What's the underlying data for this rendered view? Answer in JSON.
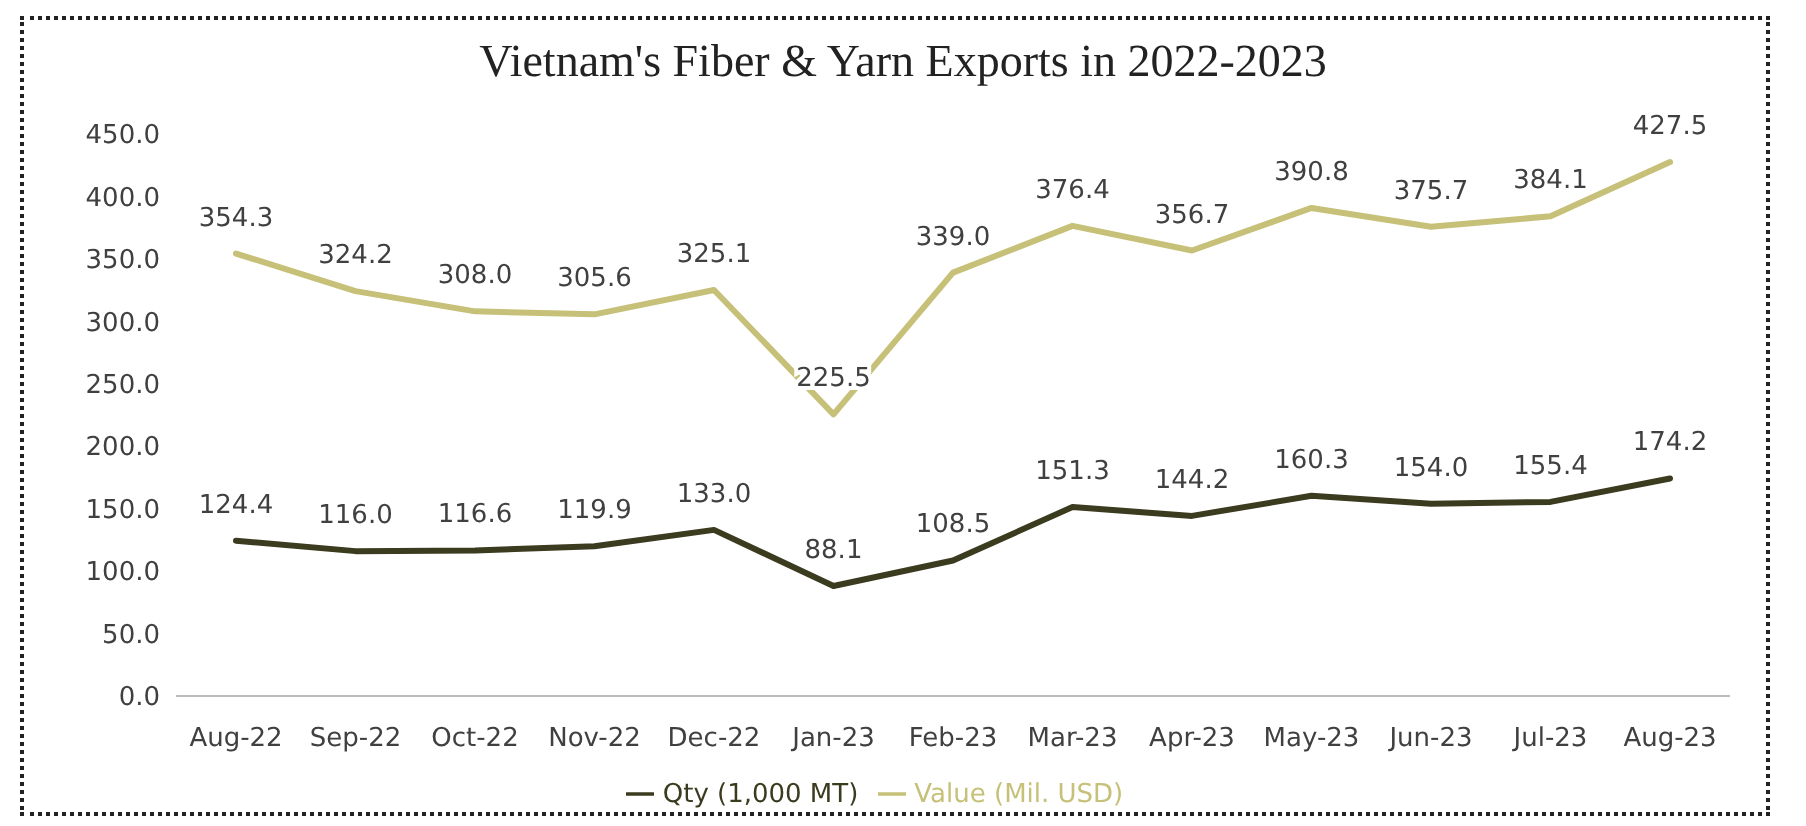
{
  "chart_data": {
    "type": "line",
    "title": "Vietnam's Fiber & Yarn Exports in 2022-2023",
    "categories": [
      "Aug-22",
      "Sep-22",
      "Oct-22",
      "Nov-22",
      "Dec-22",
      "Jan-23",
      "Feb-23",
      "Mar-23",
      "Apr-23",
      "May-23",
      "Jun-23",
      "Jul-23",
      "Aug-23"
    ],
    "series": [
      {
        "name": "Qty (1,000 MT)",
        "color": "#3b3b1f",
        "values": [
          124.4,
          116.0,
          116.6,
          119.9,
          133.0,
          88.1,
          108.5,
          151.3,
          144.2,
          160.3,
          154.0,
          155.4,
          174.2
        ],
        "value_labels": [
          "124.4",
          "116.0",
          "116.6",
          "119.9",
          "133.0",
          "88.1",
          "108.5",
          "151.3",
          "144.2",
          "160.3",
          "154.0",
          "155.4",
          "174.2"
        ]
      },
      {
        "name": "Value (Mil. USD)",
        "color": "#c6c078",
        "values": [
          354.3,
          324.2,
          308.0,
          305.6,
          325.1,
          225.5,
          339.0,
          376.4,
          356.7,
          390.8,
          375.7,
          384.1,
          427.5
        ],
        "value_labels": [
          "354.3",
          "324.2",
          "308.0",
          "305.6",
          "325.1",
          "225.5",
          "339.0",
          "376.4",
          "356.7",
          "390.8",
          "375.7",
          "384.1",
          "427.5"
        ]
      }
    ],
    "ylim": [
      0,
      450
    ],
    "yticks": [
      {
        "value": 0,
        "label": "0.0"
      },
      {
        "value": 50,
        "label": "50.0"
      },
      {
        "value": 100,
        "label": "100.0"
      },
      {
        "value": 150,
        "label": "150.0"
      },
      {
        "value": 200,
        "label": "200.0"
      },
      {
        "value": 250,
        "label": "250.0"
      },
      {
        "value": 300,
        "label": "300.0"
      },
      {
        "value": 350,
        "label": "350.0"
      },
      {
        "value": 400,
        "label": "400.0"
      },
      {
        "value": 450,
        "label": "450.0"
      }
    ],
    "grid": false,
    "legend": "bottom",
    "marker": "none",
    "line_style": "solid"
  }
}
